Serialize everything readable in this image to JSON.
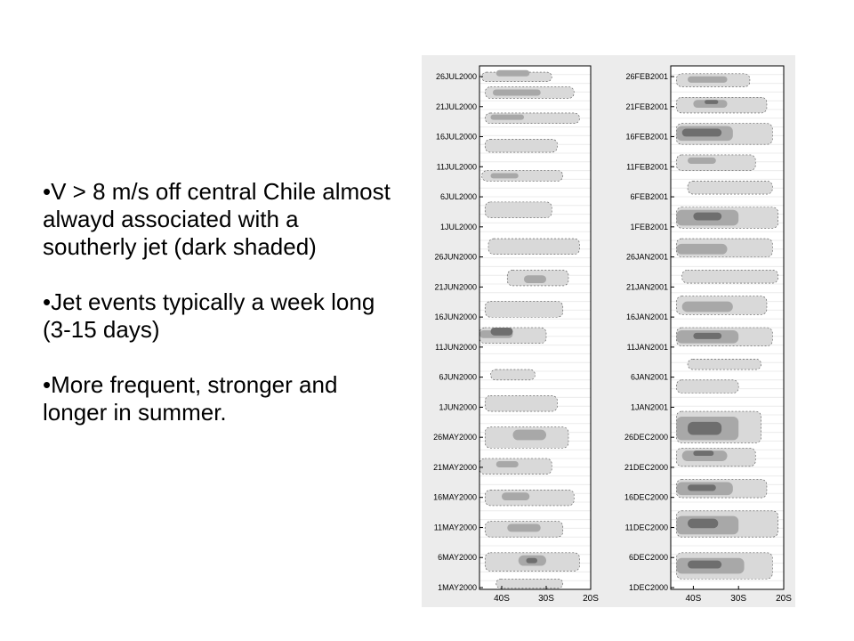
{
  "slide": {
    "bullets": [
      "V > 8 m/s off central Chile almost alwayd associated with a southerly jet (dark shaded)",
      "Jet events typically a week long (3-15 days)",
      "More frequent, stronger and longer in summer."
    ]
  },
  "chart_data": [
    {
      "type": "heatmap",
      "title": "",
      "xlabel": "",
      "ylabel": "",
      "x_ticks": [
        "40S",
        "30S",
        "20S"
      ],
      "y_ticks": [
        "1MAY2000",
        "6MAY2000",
        "11MAY2000",
        "16MAY2000",
        "21MAY2000",
        "26MAY2000",
        "1JUN2000",
        "6JUN2000",
        "11JUN2000",
        "16JUN2000",
        "21JUN2000",
        "26JUN2000",
        "1JUL2000",
        "6JUL2000",
        "11JUL2000",
        "16JUL2000",
        "21JUL2000",
        "26JUL2000"
      ],
      "shade_colors": [
        "#d9d9d9",
        "#a8a8a8",
        "#6e6e6e"
      ],
      "bands": [
        {
          "y": 0.012,
          "h": 0.018,
          "x0": 0.02,
          "x1": 0.65,
          "l": 1
        },
        {
          "y": 0.008,
          "h": 0.012,
          "x0": 0.15,
          "x1": 0.45,
          "l": 2
        },
        {
          "y": 0.04,
          "h": 0.022,
          "x0": 0.05,
          "x1": 0.85,
          "l": 1
        },
        {
          "y": 0.045,
          "h": 0.012,
          "x0": 0.12,
          "x1": 0.55,
          "l": 2
        },
        {
          "y": 0.09,
          "h": 0.02,
          "x0": 0.05,
          "x1": 0.9,
          "l": 1
        },
        {
          "y": 0.093,
          "h": 0.01,
          "x0": 0.1,
          "x1": 0.4,
          "l": 2
        },
        {
          "y": 0.14,
          "h": 0.025,
          "x0": 0.05,
          "x1": 0.7,
          "l": 1
        },
        {
          "y": 0.2,
          "h": 0.02,
          "x0": 0.02,
          "x1": 0.75,
          "l": 1
        },
        {
          "y": 0.205,
          "h": 0.01,
          "x0": 0.1,
          "x1": 0.35,
          "l": 2
        },
        {
          "y": 0.26,
          "h": 0.03,
          "x0": 0.05,
          "x1": 0.65,
          "l": 1
        },
        {
          "y": 0.33,
          "h": 0.03,
          "x0": 0.08,
          "x1": 0.9,
          "l": 1
        },
        {
          "y": 0.39,
          "h": 0.03,
          "x0": 0.25,
          "x1": 0.8,
          "l": 1
        },
        {
          "y": 0.4,
          "h": 0.015,
          "x0": 0.4,
          "x1": 0.6,
          "l": 2
        },
        {
          "y": 0.45,
          "h": 0.03,
          "x0": 0.05,
          "x1": 0.75,
          "l": 1
        },
        {
          "y": 0.5,
          "h": 0.03,
          "x0": 0.0,
          "x1": 0.6,
          "l": 1
        },
        {
          "y": 0.505,
          "h": 0.015,
          "x0": 0.0,
          "x1": 0.3,
          "l": 2
        },
        {
          "y": 0.5,
          "h": 0.015,
          "x0": 0.1,
          "x1": 0.3,
          "l": 3
        },
        {
          "y": 0.58,
          "h": 0.02,
          "x0": 0.1,
          "x1": 0.5,
          "l": 1
        },
        {
          "y": 0.63,
          "h": 0.03,
          "x0": 0.05,
          "x1": 0.7,
          "l": 1
        },
        {
          "y": 0.69,
          "h": 0.04,
          "x0": 0.05,
          "x1": 0.8,
          "l": 1
        },
        {
          "y": 0.695,
          "h": 0.02,
          "x0": 0.3,
          "x1": 0.6,
          "l": 2
        },
        {
          "y": 0.75,
          "h": 0.03,
          "x0": 0.0,
          "x1": 0.65,
          "l": 1
        },
        {
          "y": 0.755,
          "h": 0.012,
          "x0": 0.15,
          "x1": 0.35,
          "l": 2
        },
        {
          "y": 0.81,
          "h": 0.03,
          "x0": 0.05,
          "x1": 0.85,
          "l": 1
        },
        {
          "y": 0.815,
          "h": 0.015,
          "x0": 0.2,
          "x1": 0.45,
          "l": 2
        },
        {
          "y": 0.87,
          "h": 0.03,
          "x0": 0.05,
          "x1": 0.75,
          "l": 1
        },
        {
          "y": 0.875,
          "h": 0.015,
          "x0": 0.25,
          "x1": 0.55,
          "l": 2
        },
        {
          "y": 0.93,
          "h": 0.035,
          "x0": 0.05,
          "x1": 0.9,
          "l": 1
        },
        {
          "y": 0.935,
          "h": 0.02,
          "x0": 0.35,
          "x1": 0.6,
          "l": 2
        },
        {
          "y": 0.94,
          "h": 0.01,
          "x0": 0.42,
          "x1": 0.52,
          "l": 3
        },
        {
          "y": 0.98,
          "h": 0.018,
          "x0": 0.15,
          "x1": 0.75,
          "l": 1
        }
      ]
    },
    {
      "type": "heatmap",
      "title": "",
      "xlabel": "",
      "ylabel": "",
      "x_ticks": [
        "40S",
        "30S",
        "20S"
      ],
      "y_ticks": [
        "1DEC2000",
        "6DEC2000",
        "11DEC2000",
        "16DEC2000",
        "21DEC2000",
        "26DEC2000",
        "1JAN2001",
        "6JAN2001",
        "11JAN2001",
        "16JAN2001",
        "21JAN2001",
        "26JAN2001",
        "1FEB2001",
        "6FEB2001",
        "11FEB2001",
        "16FEB2001",
        "21FEB2001",
        "26FEB2001"
      ],
      "shade_colors": [
        "#d9d9d9",
        "#a8a8a8",
        "#6e6e6e"
      ],
      "bands": [
        {
          "y": 0.015,
          "h": 0.025,
          "x0": 0.05,
          "x1": 0.7,
          "l": 1
        },
        {
          "y": 0.02,
          "h": 0.012,
          "x0": 0.15,
          "x1": 0.5,
          "l": 2
        },
        {
          "y": 0.06,
          "h": 0.03,
          "x0": 0.05,
          "x1": 0.85,
          "l": 1
        },
        {
          "y": 0.065,
          "h": 0.015,
          "x0": 0.2,
          "x1": 0.5,
          "l": 2
        },
        {
          "y": 0.065,
          "h": 0.008,
          "x0": 0.3,
          "x1": 0.42,
          "l": 3
        },
        {
          "y": 0.11,
          "h": 0.04,
          "x0": 0.05,
          "x1": 0.9,
          "l": 1
        },
        {
          "y": 0.115,
          "h": 0.028,
          "x0": 0.05,
          "x1": 0.55,
          "l": 2
        },
        {
          "y": 0.12,
          "h": 0.015,
          "x0": 0.1,
          "x1": 0.45,
          "l": 3
        },
        {
          "y": 0.17,
          "h": 0.03,
          "x0": 0.05,
          "x1": 0.75,
          "l": 1
        },
        {
          "y": 0.175,
          "h": 0.012,
          "x0": 0.15,
          "x1": 0.4,
          "l": 2
        },
        {
          "y": 0.22,
          "h": 0.025,
          "x0": 0.15,
          "x1": 0.9,
          "l": 1
        },
        {
          "y": 0.27,
          "h": 0.04,
          "x0": 0.05,
          "x1": 0.95,
          "l": 1
        },
        {
          "y": 0.275,
          "h": 0.03,
          "x0": 0.05,
          "x1": 0.6,
          "l": 2
        },
        {
          "y": 0.28,
          "h": 0.015,
          "x0": 0.2,
          "x1": 0.45,
          "l": 3
        },
        {
          "y": 0.33,
          "h": 0.035,
          "x0": 0.05,
          "x1": 0.9,
          "l": 1
        },
        {
          "y": 0.34,
          "h": 0.02,
          "x0": 0.05,
          "x1": 0.5,
          "l": 2
        },
        {
          "y": 0.39,
          "h": 0.025,
          "x0": 0.1,
          "x1": 0.95,
          "l": 1
        },
        {
          "y": 0.44,
          "h": 0.035,
          "x0": 0.05,
          "x1": 0.85,
          "l": 1
        },
        {
          "y": 0.45,
          "h": 0.02,
          "x0": 0.1,
          "x1": 0.55,
          "l": 2
        },
        {
          "y": 0.5,
          "h": 0.035,
          "x0": 0.05,
          "x1": 0.9,
          "l": 1
        },
        {
          "y": 0.505,
          "h": 0.025,
          "x0": 0.05,
          "x1": 0.6,
          "l": 2
        },
        {
          "y": 0.51,
          "h": 0.012,
          "x0": 0.2,
          "x1": 0.45,
          "l": 3
        },
        {
          "y": 0.56,
          "h": 0.02,
          "x0": 0.15,
          "x1": 0.8,
          "l": 1
        },
        {
          "y": 0.6,
          "h": 0.025,
          "x0": 0.05,
          "x1": 0.6,
          "l": 1
        },
        {
          "y": 0.66,
          "h": 0.06,
          "x0": 0.05,
          "x1": 0.8,
          "l": 1
        },
        {
          "y": 0.67,
          "h": 0.045,
          "x0": 0.05,
          "x1": 0.6,
          "l": 2
        },
        {
          "y": 0.68,
          "h": 0.025,
          "x0": 0.15,
          "x1": 0.45,
          "l": 3
        },
        {
          "y": 0.73,
          "h": 0.035,
          "x0": 0.05,
          "x1": 0.75,
          "l": 1
        },
        {
          "y": 0.735,
          "h": 0.02,
          "x0": 0.1,
          "x1": 0.5,
          "l": 2
        },
        {
          "y": 0.735,
          "h": 0.01,
          "x0": 0.2,
          "x1": 0.38,
          "l": 3
        },
        {
          "y": 0.79,
          "h": 0.035,
          "x0": 0.05,
          "x1": 0.85,
          "l": 1
        },
        {
          "y": 0.795,
          "h": 0.025,
          "x0": 0.05,
          "x1": 0.55,
          "l": 2
        },
        {
          "y": 0.8,
          "h": 0.012,
          "x0": 0.15,
          "x1": 0.4,
          "l": 3
        },
        {
          "y": 0.85,
          "h": 0.05,
          "x0": 0.05,
          "x1": 0.95,
          "l": 1
        },
        {
          "y": 0.86,
          "h": 0.035,
          "x0": 0.05,
          "x1": 0.6,
          "l": 2
        },
        {
          "y": 0.865,
          "h": 0.018,
          "x0": 0.15,
          "x1": 0.42,
          "l": 3
        },
        {
          "y": 0.93,
          "h": 0.05,
          "x0": 0.05,
          "x1": 0.9,
          "l": 1
        },
        {
          "y": 0.94,
          "h": 0.03,
          "x0": 0.05,
          "x1": 0.65,
          "l": 2
        },
        {
          "y": 0.945,
          "h": 0.015,
          "x0": 0.15,
          "x1": 0.45,
          "l": 3
        }
      ]
    }
  ],
  "annotations": {
    "arrow_color": "#d6005e",
    "arrows": [
      {
        "y0": 0.675,
        "y1": 0.79
      },
      {
        "y0": 0.565,
        "y1": 0.625
      },
      {
        "y0": 0.12,
        "y1": 0.26
      }
    ]
  }
}
